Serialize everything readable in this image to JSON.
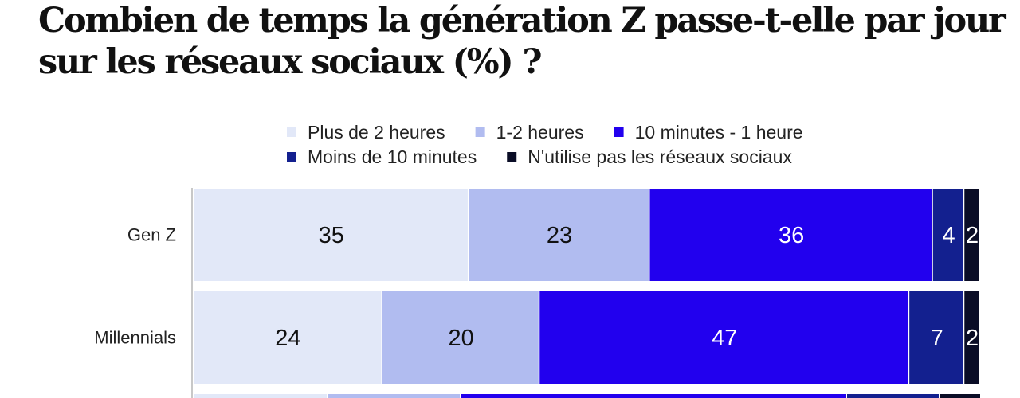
{
  "chart_data": {
    "type": "bar",
    "orientation": "horizontal",
    "stacked": true,
    "title": "Combien de temps la génération Z passe-t-elle par jour sur les réseaux sociaux (%) ?",
    "categories": [
      "Gen Z",
      "Millennials"
    ],
    "series": [
      {
        "name": "Plus de 2 heures",
        "color": "#e2e8f8",
        "label_color": "#111111",
        "values": [
          35,
          24
        ]
      },
      {
        "name": "1-2 heures",
        "color": "#b1bcf0",
        "label_color": "#111111",
        "values": [
          23,
          20
        ]
      },
      {
        "name": "10 minutes - 1 heure",
        "color": "#2200ee",
        "label_color": "#ffffff",
        "values": [
          36,
          47
        ]
      },
      {
        "name": "Moins de 10 minutes",
        "color": "#13208f",
        "label_color": "#ffffff",
        "values": [
          4,
          7
        ]
      },
      {
        "name": "N'utilise pas les réseaux sociaux",
        "color": "#0a0d26",
        "label_color": "#ffffff",
        "values": [
          2,
          2
        ]
      }
    ],
    "xlim": [
      0,
      100
    ],
    "legend_position": "top",
    "grid": false
  }
}
